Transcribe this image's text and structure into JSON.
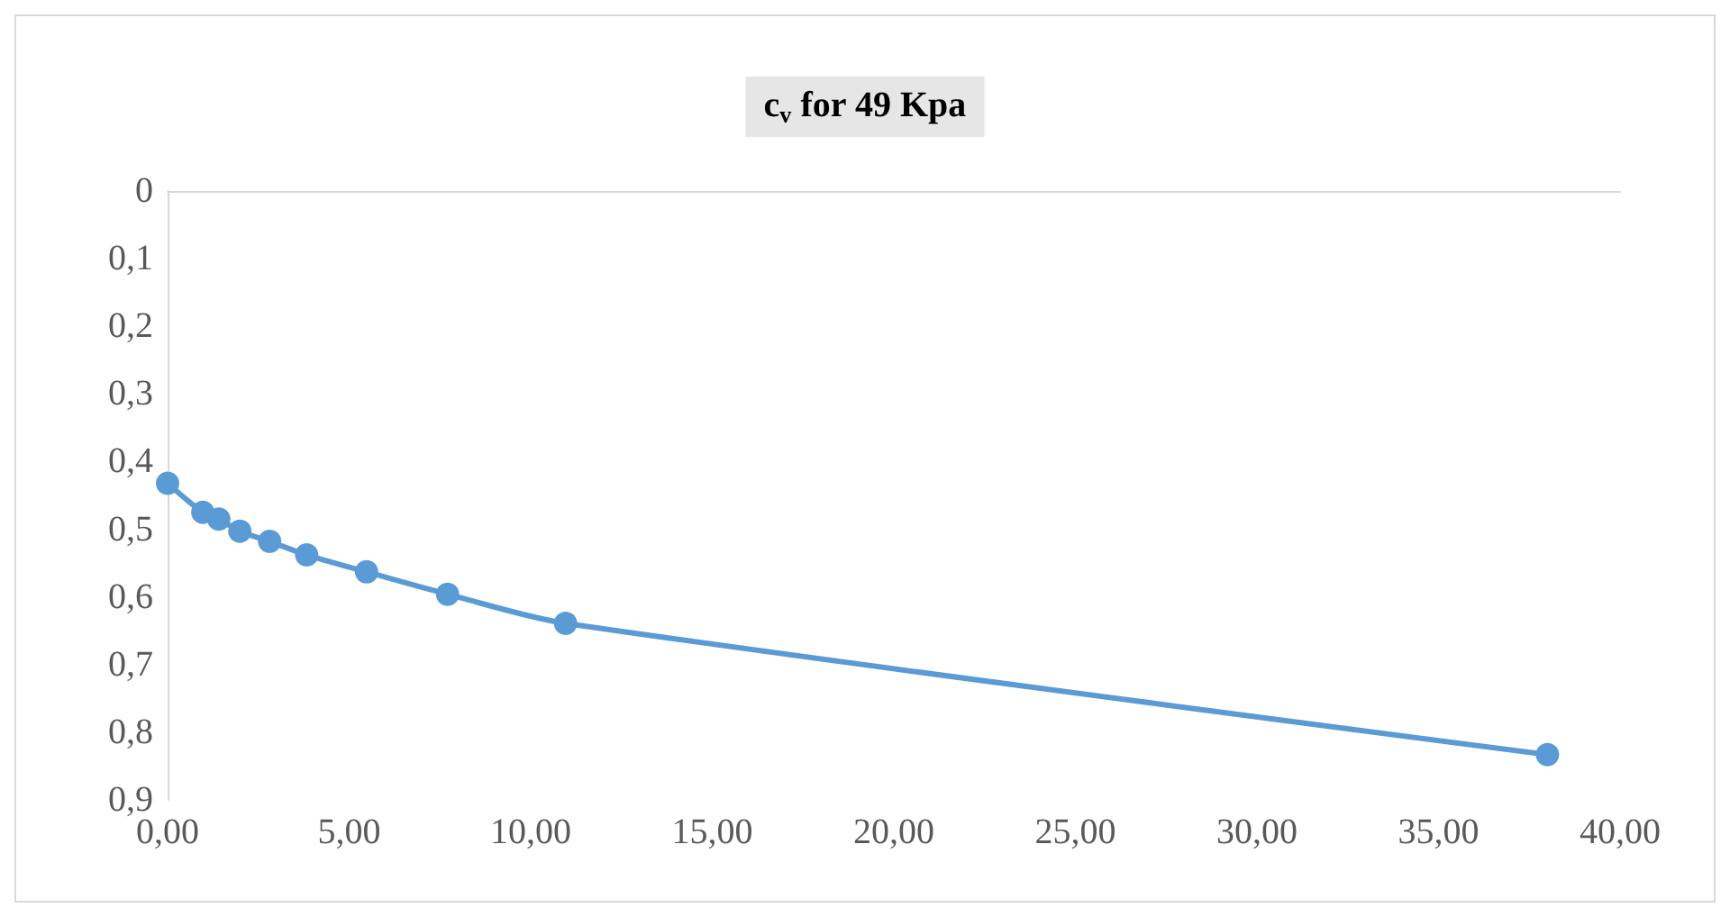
{
  "chart_data": {
    "type": "line",
    "title": "c$_{v}$ for 49 Kpa",
    "series": [
      {
        "color": "#5b9bd5",
        "x": [
          0,
          0.97,
          1.41,
          1.99,
          2.81,
          3.83,
          5.48,
          7.71,
          10.96,
          38.0
        ],
        "values": [
          0.432,
          0.475,
          0.485,
          0.503,
          0.518,
          0.538,
          0.563,
          0.596,
          0.639,
          0.833
        ]
      }
    ],
    "xlim": [
      0,
      40
    ],
    "xticks": [
      {
        "value": 0,
        "label": "0,00"
      },
      {
        "value": 5,
        "label": "5,00"
      },
      {
        "value": 10,
        "label": "10,00"
      },
      {
        "value": 15,
        "label": "15,00"
      },
      {
        "value": 20,
        "label": "20,00"
      },
      {
        "value": 25,
        "label": "25,00"
      },
      {
        "value": 30,
        "label": "30,00"
      },
      {
        "value": 35,
        "label": "35,00"
      },
      {
        "value": 40,
        "label": "40,00"
      }
    ],
    "ylim": [
      0.9,
      0
    ],
    "yticks": [
      0,
      {
        "value": 0.1,
        "label": "0,1"
      },
      {
        "value": 0.2,
        "label": "0,2"
      },
      {
        "value": 0.3,
        "label": "0,3"
      },
      {
        "value": 0.4,
        "label": "0,4"
      },
      {
        "value": 0.5,
        "label": "0,5"
      },
      {
        "value": 0.6,
        "label": "0,6"
      },
      {
        "value": 0.7,
        "label": "0,7"
      },
      {
        "value": 0.8,
        "label": "0,8"
      },
      {
        "value": 0.9,
        "label": "0,9"
      }
    ],
    "grid": false,
    "marker": "circle",
    "line_style": "solid"
  }
}
